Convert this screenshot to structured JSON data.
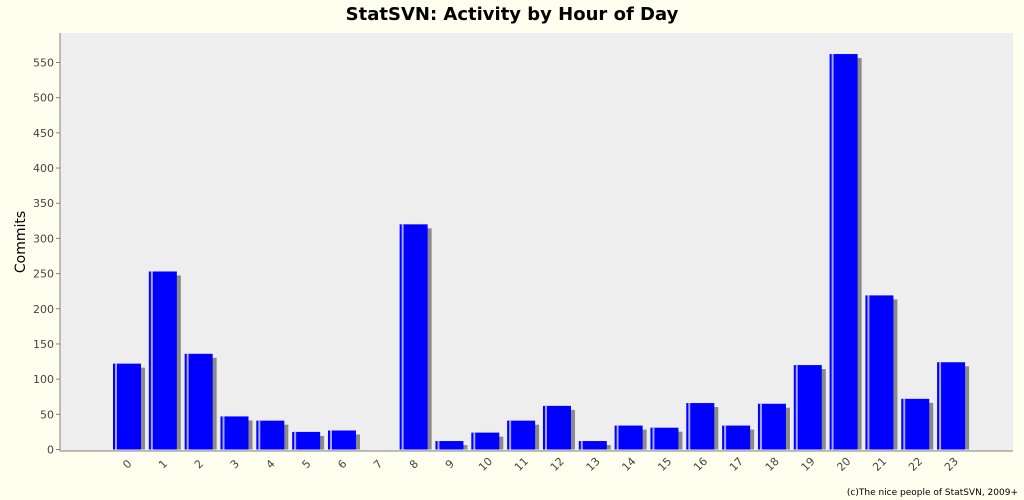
{
  "title": "StatSVN: Activity by Hour of Day",
  "footer": "(c)The nice people of StatSVN, 2009+",
  "colors": {
    "bar": "#0000ff",
    "shadow": "#8a8a8a",
    "plot_bg": "#eeeeee",
    "page_bg": "#ffffef"
  },
  "chart_data": {
    "type": "bar",
    "title": "StatSVN: Activity by Hour of Day",
    "xlabel": "",
    "ylabel": "Commits",
    "ylim": [
      0,
      580
    ],
    "yticks": [
      0,
      50,
      100,
      150,
      200,
      250,
      300,
      350,
      400,
      450,
      500,
      550
    ],
    "grid": false,
    "categories": [
      "0",
      "1",
      "2",
      "3",
      "4",
      "5",
      "6",
      "7",
      "8",
      "9",
      "10",
      "11",
      "12",
      "13",
      "14",
      "15",
      "16",
      "17",
      "18",
      "19",
      "20",
      "21",
      "22",
      "23"
    ],
    "values": [
      122,
      253,
      136,
      47,
      41,
      25,
      27,
      0,
      320,
      12,
      24,
      41,
      62,
      12,
      34,
      31,
      66,
      34,
      65,
      120,
      562,
      219,
      72,
      124
    ]
  }
}
